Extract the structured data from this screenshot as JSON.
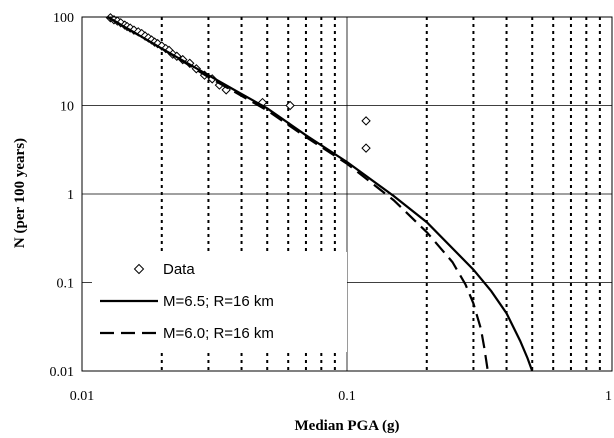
{
  "chart_data": {
    "type": "line",
    "xlabel": "Median PGA (g)",
    "ylabel": "N (per 100 years)",
    "x_scale": "log",
    "y_scale": "log",
    "xlim": [
      0.01,
      1
    ],
    "ylim": [
      0.01,
      100
    ],
    "x_ticks": [
      "0.01",
      "0.1",
      "1"
    ],
    "y_ticks": [
      "0.01",
      "0.1",
      "1",
      "10",
      "100"
    ],
    "grid": "horizontal major solid, vertical minor dotted",
    "legend_position": "bottom-left",
    "series": [
      {
        "name": "Data",
        "kind": "scatter",
        "marker": "diamond",
        "points": [
          {
            "x": 0.0128,
            "y": 98
          },
          {
            "x": 0.0132,
            "y": 93
          },
          {
            "x": 0.0136,
            "y": 90
          },
          {
            "x": 0.014,
            "y": 86
          },
          {
            "x": 0.0145,
            "y": 81
          },
          {
            "x": 0.0148,
            "y": 78
          },
          {
            "x": 0.0152,
            "y": 75
          },
          {
            "x": 0.0157,
            "y": 71
          },
          {
            "x": 0.0163,
            "y": 68
          },
          {
            "x": 0.0168,
            "y": 65
          },
          {
            "x": 0.0173,
            "y": 61
          },
          {
            "x": 0.0178,
            "y": 58
          },
          {
            "x": 0.0183,
            "y": 55
          },
          {
            "x": 0.0188,
            "y": 52
          },
          {
            "x": 0.0193,
            "y": 50
          },
          {
            "x": 0.02,
            "y": 47
          },
          {
            "x": 0.0207,
            "y": 44
          },
          {
            "x": 0.0213,
            "y": 42
          },
          {
            "x": 0.022,
            "y": 38
          },
          {
            "x": 0.0228,
            "y": 36
          },
          {
            "x": 0.024,
            "y": 33
          },
          {
            "x": 0.0255,
            "y": 30
          },
          {
            "x": 0.027,
            "y": 26
          },
          {
            "x": 0.029,
            "y": 22
          },
          {
            "x": 0.031,
            "y": 20
          },
          {
            "x": 0.033,
            "y": 17
          },
          {
            "x": 0.035,
            "y": 15
          },
          {
            "x": 0.048,
            "y": 10.8
          },
          {
            "x": 0.061,
            "y": 10
          },
          {
            "x": 0.118,
            "y": 6.7
          },
          {
            "x": 0.118,
            "y": 3.3
          }
        ]
      },
      {
        "name": "M=6.5; R=16 km",
        "kind": "line",
        "style": "solid",
        "points": [
          {
            "x": 0.0125,
            "y": 100
          },
          {
            "x": 0.02,
            "y": 44
          },
          {
            "x": 0.03,
            "y": 22
          },
          {
            "x": 0.04,
            "y": 13.5
          },
          {
            "x": 0.05,
            "y": 9.3
          },
          {
            "x": 0.07,
            "y": 4.6
          },
          {
            "x": 0.1,
            "y": 2.3
          },
          {
            "x": 0.15,
            "y": 0.95
          },
          {
            "x": 0.2,
            "y": 0.48
          },
          {
            "x": 0.3,
            "y": 0.14
          },
          {
            "x": 0.35,
            "y": 0.08
          },
          {
            "x": 0.4,
            "y": 0.045
          },
          {
            "x": 0.45,
            "y": 0.022
          },
          {
            "x": 0.48,
            "y": 0.014
          },
          {
            "x": 0.5,
            "y": 0.01
          }
        ]
      },
      {
        "name": "M=6.0; R=16 km",
        "kind": "line",
        "style": "dashed",
        "points": [
          {
            "x": 0.0125,
            "y": 100
          },
          {
            "x": 0.02,
            "y": 44
          },
          {
            "x": 0.03,
            "y": 21
          },
          {
            "x": 0.05,
            "y": 8.8
          },
          {
            "x": 0.07,
            "y": 4.4
          },
          {
            "x": 0.1,
            "y": 2.2
          },
          {
            "x": 0.15,
            "y": 0.85
          },
          {
            "x": 0.2,
            "y": 0.37
          },
          {
            "x": 0.25,
            "y": 0.17
          },
          {
            "x": 0.28,
            "y": 0.095
          },
          {
            "x": 0.3,
            "y": 0.058
          },
          {
            "x": 0.32,
            "y": 0.03
          },
          {
            "x": 0.33,
            "y": 0.018
          },
          {
            "x": 0.34,
            "y": 0.01
          }
        ]
      }
    ]
  }
}
